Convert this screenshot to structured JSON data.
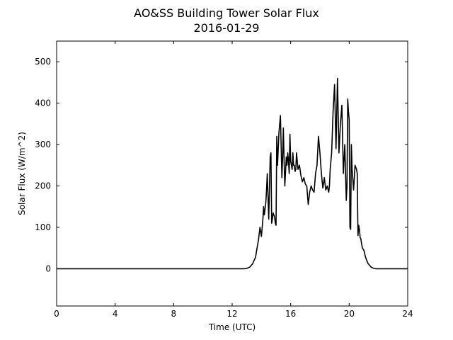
{
  "chart_data": {
    "type": "line",
    "title": "AO&SS Building Tower Solar Flux",
    "subtitle": "2016-01-29",
    "xlabel": "Time (UTC)",
    "ylabel": "Solar Flux (W/m^2)",
    "xlim": [
      0,
      24
    ],
    "ylim": [
      -90,
      550
    ],
    "xticks": [
      0,
      4,
      8,
      12,
      16,
      20,
      24
    ],
    "yticks": [
      0,
      100,
      200,
      300,
      400,
      500
    ],
    "grid": false,
    "line_color": "#000000",
    "series": [
      {
        "x": [
          0,
          12.8,
          13.0,
          13.2,
          13.4,
          13.5,
          13.6,
          13.7,
          13.8,
          13.9,
          14.0,
          14.1,
          14.15,
          14.2,
          14.3,
          14.35,
          14.4,
          14.5,
          14.6,
          14.65,
          14.7,
          14.75,
          14.8,
          14.85,
          14.9,
          14.95,
          15.0,
          15.05,
          15.1,
          15.2,
          15.3,
          15.4,
          15.45,
          15.5,
          15.55,
          15.6,
          15.7,
          15.75,
          15.8,
          15.85,
          15.9,
          15.95,
          16.0,
          16.1,
          16.15,
          16.2,
          16.25,
          16.3,
          16.35,
          16.4,
          16.5,
          16.6,
          16.7,
          16.8,
          16.9,
          17.0,
          17.1,
          17.2,
          17.3,
          17.4,
          17.5,
          17.6,
          17.7,
          17.8,
          17.9,
          18.0,
          18.1,
          18.2,
          18.3,
          18.4,
          18.5,
          18.6,
          18.65,
          18.7,
          18.75,
          18.8,
          18.9,
          19.0,
          19.1,
          19.2,
          19.3,
          19.4,
          19.5,
          19.6,
          19.7,
          19.8,
          19.85,
          19.9,
          19.95,
          20.0,
          20.05,
          20.1,
          20.15,
          20.2,
          20.3,
          20.4,
          20.5,
          20.55,
          20.6,
          20.65,
          20.7,
          20.75,
          20.8,
          20.85,
          20.9,
          21.0,
          21.05,
          21.1,
          21.15,
          21.2,
          21.3,
          21.4,
          21.5,
          21.6,
          21.8,
          22.0,
          22.2,
          22.4,
          22.6,
          22.8,
          23.0,
          23.2,
          23.4,
          24.0
        ],
        "y": [
          0,
          0,
          1,
          4,
          12,
          20,
          28,
          50,
          70,
          100,
          78,
          120,
          150,
          130,
          160,
          190,
          230,
          120,
          270,
          280,
          110,
          120,
          135,
          130,
          125,
          110,
          105,
          320,
          250,
          330,
          370,
          220,
          270,
          340,
          260,
          200,
          270,
          250,
          280,
          260,
          230,
          325,
          260,
          240,
          280,
          250,
          250,
          235,
          240,
          280,
          240,
          250,
          225,
          210,
          220,
          205,
          200,
          155,
          185,
          200,
          190,
          185,
          230,
          250,
          320,
          280,
          230,
          195,
          220,
          190,
          200,
          185,
          200,
          240,
          260,
          280,
          380,
          445,
          290,
          460,
          280,
          350,
          395,
          230,
          300,
          165,
          200,
          410,
          380,
          360,
          100,
          95,
          300,
          240,
          190,
          250,
          240,
          230,
          80,
          105,
          95,
          75,
          72,
          60,
          50,
          45,
          38,
          30,
          25,
          20,
          12,
          8,
          4,
          2,
          0,
          0,
          0,
          0,
          0,
          0,
          0,
          0,
          0,
          0
        ]
      }
    ]
  }
}
